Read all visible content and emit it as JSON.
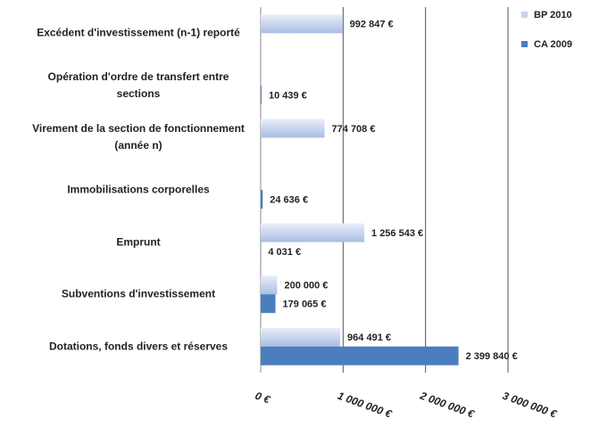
{
  "chart_data": {
    "type": "bar",
    "orientation": "horizontal",
    "categories": [
      "Excédent d'investissement (n-1) reporté",
      "Opération d'ordre de transfert entre sections",
      "Virement de la section de fonctionnement (année n)",
      "Immobilisations corporelles",
      "Emprunt",
      "Subventions d'investissement",
      "Dotations, fonds divers et réserves"
    ],
    "series": [
      {
        "name": "BP 2010",
        "color": "#c6d4ee",
        "values": [
          992847,
          null,
          774708,
          null,
          1256543,
          200000,
          964491
        ],
        "value_labels": [
          "992 847 €",
          null,
          "774 708 €",
          null,
          "1 256 543 €",
          "200 000 €",
          "964 491 €"
        ]
      },
      {
        "name": "CA 2009",
        "color": "#4a7ebf",
        "values": [
          null,
          10439,
          null,
          24636,
          4031,
          179065,
          2399840
        ],
        "value_labels": [
          null,
          "10 439 €",
          null,
          "24 636 €",
          "4 031 €",
          "179 065 €",
          "2 399 840 €"
        ]
      }
    ],
    "xlim": [
      0,
      3000000
    ],
    "xticks": [
      {
        "value": 0,
        "label": "0 €"
      },
      {
        "value": 1000000,
        "label": "1 000 000 €"
      },
      {
        "value": 2000000,
        "label": "2 000 000 €"
      },
      {
        "value": 3000000,
        "label": "3 000 000 €"
      }
    ],
    "grid": true,
    "legend": "top-right"
  }
}
